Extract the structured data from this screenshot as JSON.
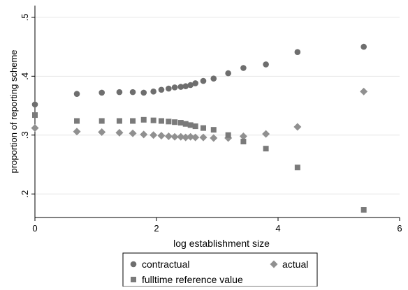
{
  "chart_data": {
    "type": "scatter",
    "xlabel": "log establishment size",
    "ylabel": "proportion of reporting scheme",
    "xlim": [
      0,
      6
    ],
    "ylim": [
      0.16,
      0.52
    ],
    "xticks": [
      0,
      2,
      4,
      6
    ],
    "xtick_labels": [
      "0",
      "2",
      "4",
      "6"
    ],
    "yticks": [
      0.2,
      0.3,
      0.4,
      0.5
    ],
    "ytick_labels": [
      ".2",
      ".3",
      ".4",
      ".5"
    ],
    "grid": true,
    "legend_position": "bottom",
    "series": [
      {
        "name": "contractual",
        "marker": "circle",
        "color": "#6e6e6e",
        "x": [
          0,
          0.69,
          1.1,
          1.39,
          1.61,
          1.79,
          1.95,
          2.08,
          2.2,
          2.3,
          2.4,
          2.48,
          2.56,
          2.64,
          2.77,
          2.94,
          3.18,
          3.43,
          3.8,
          4.32,
          5.41
        ],
        "y": [
          0.352,
          0.37,
          0.372,
          0.373,
          0.373,
          0.372,
          0.374,
          0.377,
          0.379,
          0.381,
          0.382,
          0.383,
          0.385,
          0.388,
          0.392,
          0.396,
          0.405,
          0.414,
          0.42,
          0.441,
          0.45
        ]
      },
      {
        "name": "actual",
        "marker": "diamond",
        "color": "#909090",
        "x": [
          0,
          0.69,
          1.1,
          1.39,
          1.61,
          1.79,
          1.95,
          2.08,
          2.2,
          2.3,
          2.4,
          2.48,
          2.56,
          2.64,
          2.77,
          2.94,
          3.18,
          3.43,
          3.8,
          4.32,
          5.41
        ],
        "y": [
          0.312,
          0.306,
          0.305,
          0.304,
          0.303,
          0.301,
          0.3,
          0.299,
          0.298,
          0.297,
          0.297,
          0.296,
          0.297,
          0.296,
          0.296,
          0.295,
          0.295,
          0.298,
          0.302,
          0.314,
          0.374
        ]
      },
      {
        "name": "fulltime reference value",
        "marker": "square",
        "color": "#7a7a7a",
        "x": [
          0,
          0.69,
          1.1,
          1.39,
          1.61,
          1.79,
          1.95,
          2.08,
          2.2,
          2.3,
          2.4,
          2.48,
          2.56,
          2.64,
          2.77,
          2.94,
          3.18,
          3.43,
          3.8,
          4.32,
          5.41
        ],
        "y": [
          0.334,
          0.324,
          0.324,
          0.324,
          0.324,
          0.326,
          0.325,
          0.324,
          0.323,
          0.322,
          0.321,
          0.319,
          0.317,
          0.315,
          0.312,
          0.309,
          0.3,
          0.289,
          0.277,
          0.245,
          0.173
        ]
      }
    ]
  }
}
